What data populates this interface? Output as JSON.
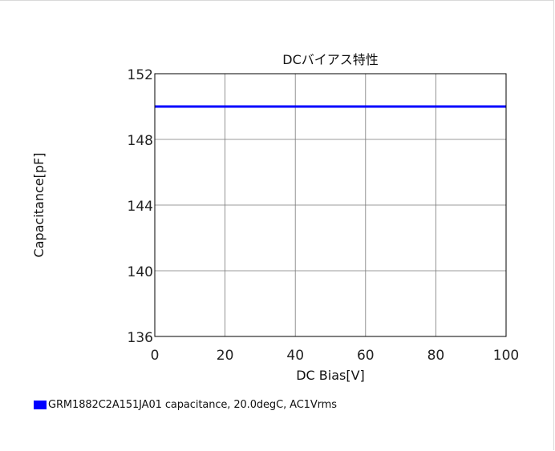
{
  "chart_data": {
    "type": "line",
    "title": "DCバイアス特性",
    "xlabel": "DC Bias[V]",
    "ylabel": "Capacitance[pF]",
    "xlim": [
      0,
      100
    ],
    "ylim": [
      136,
      152
    ],
    "xticks": [
      0,
      20,
      40,
      60,
      80,
      100
    ],
    "yticks": [
      136,
      140,
      144,
      148,
      152
    ],
    "grid": true,
    "legend_position": "bottom-left",
    "series": [
      {
        "name": "GRM1882C2A151JA01 capacitance, 20.0degC, AC1Vrms",
        "color": "#0000ff",
        "x": [
          0,
          20,
          40,
          60,
          80,
          100
        ],
        "y": [
          150,
          150,
          150,
          150,
          150,
          150
        ]
      }
    ]
  }
}
